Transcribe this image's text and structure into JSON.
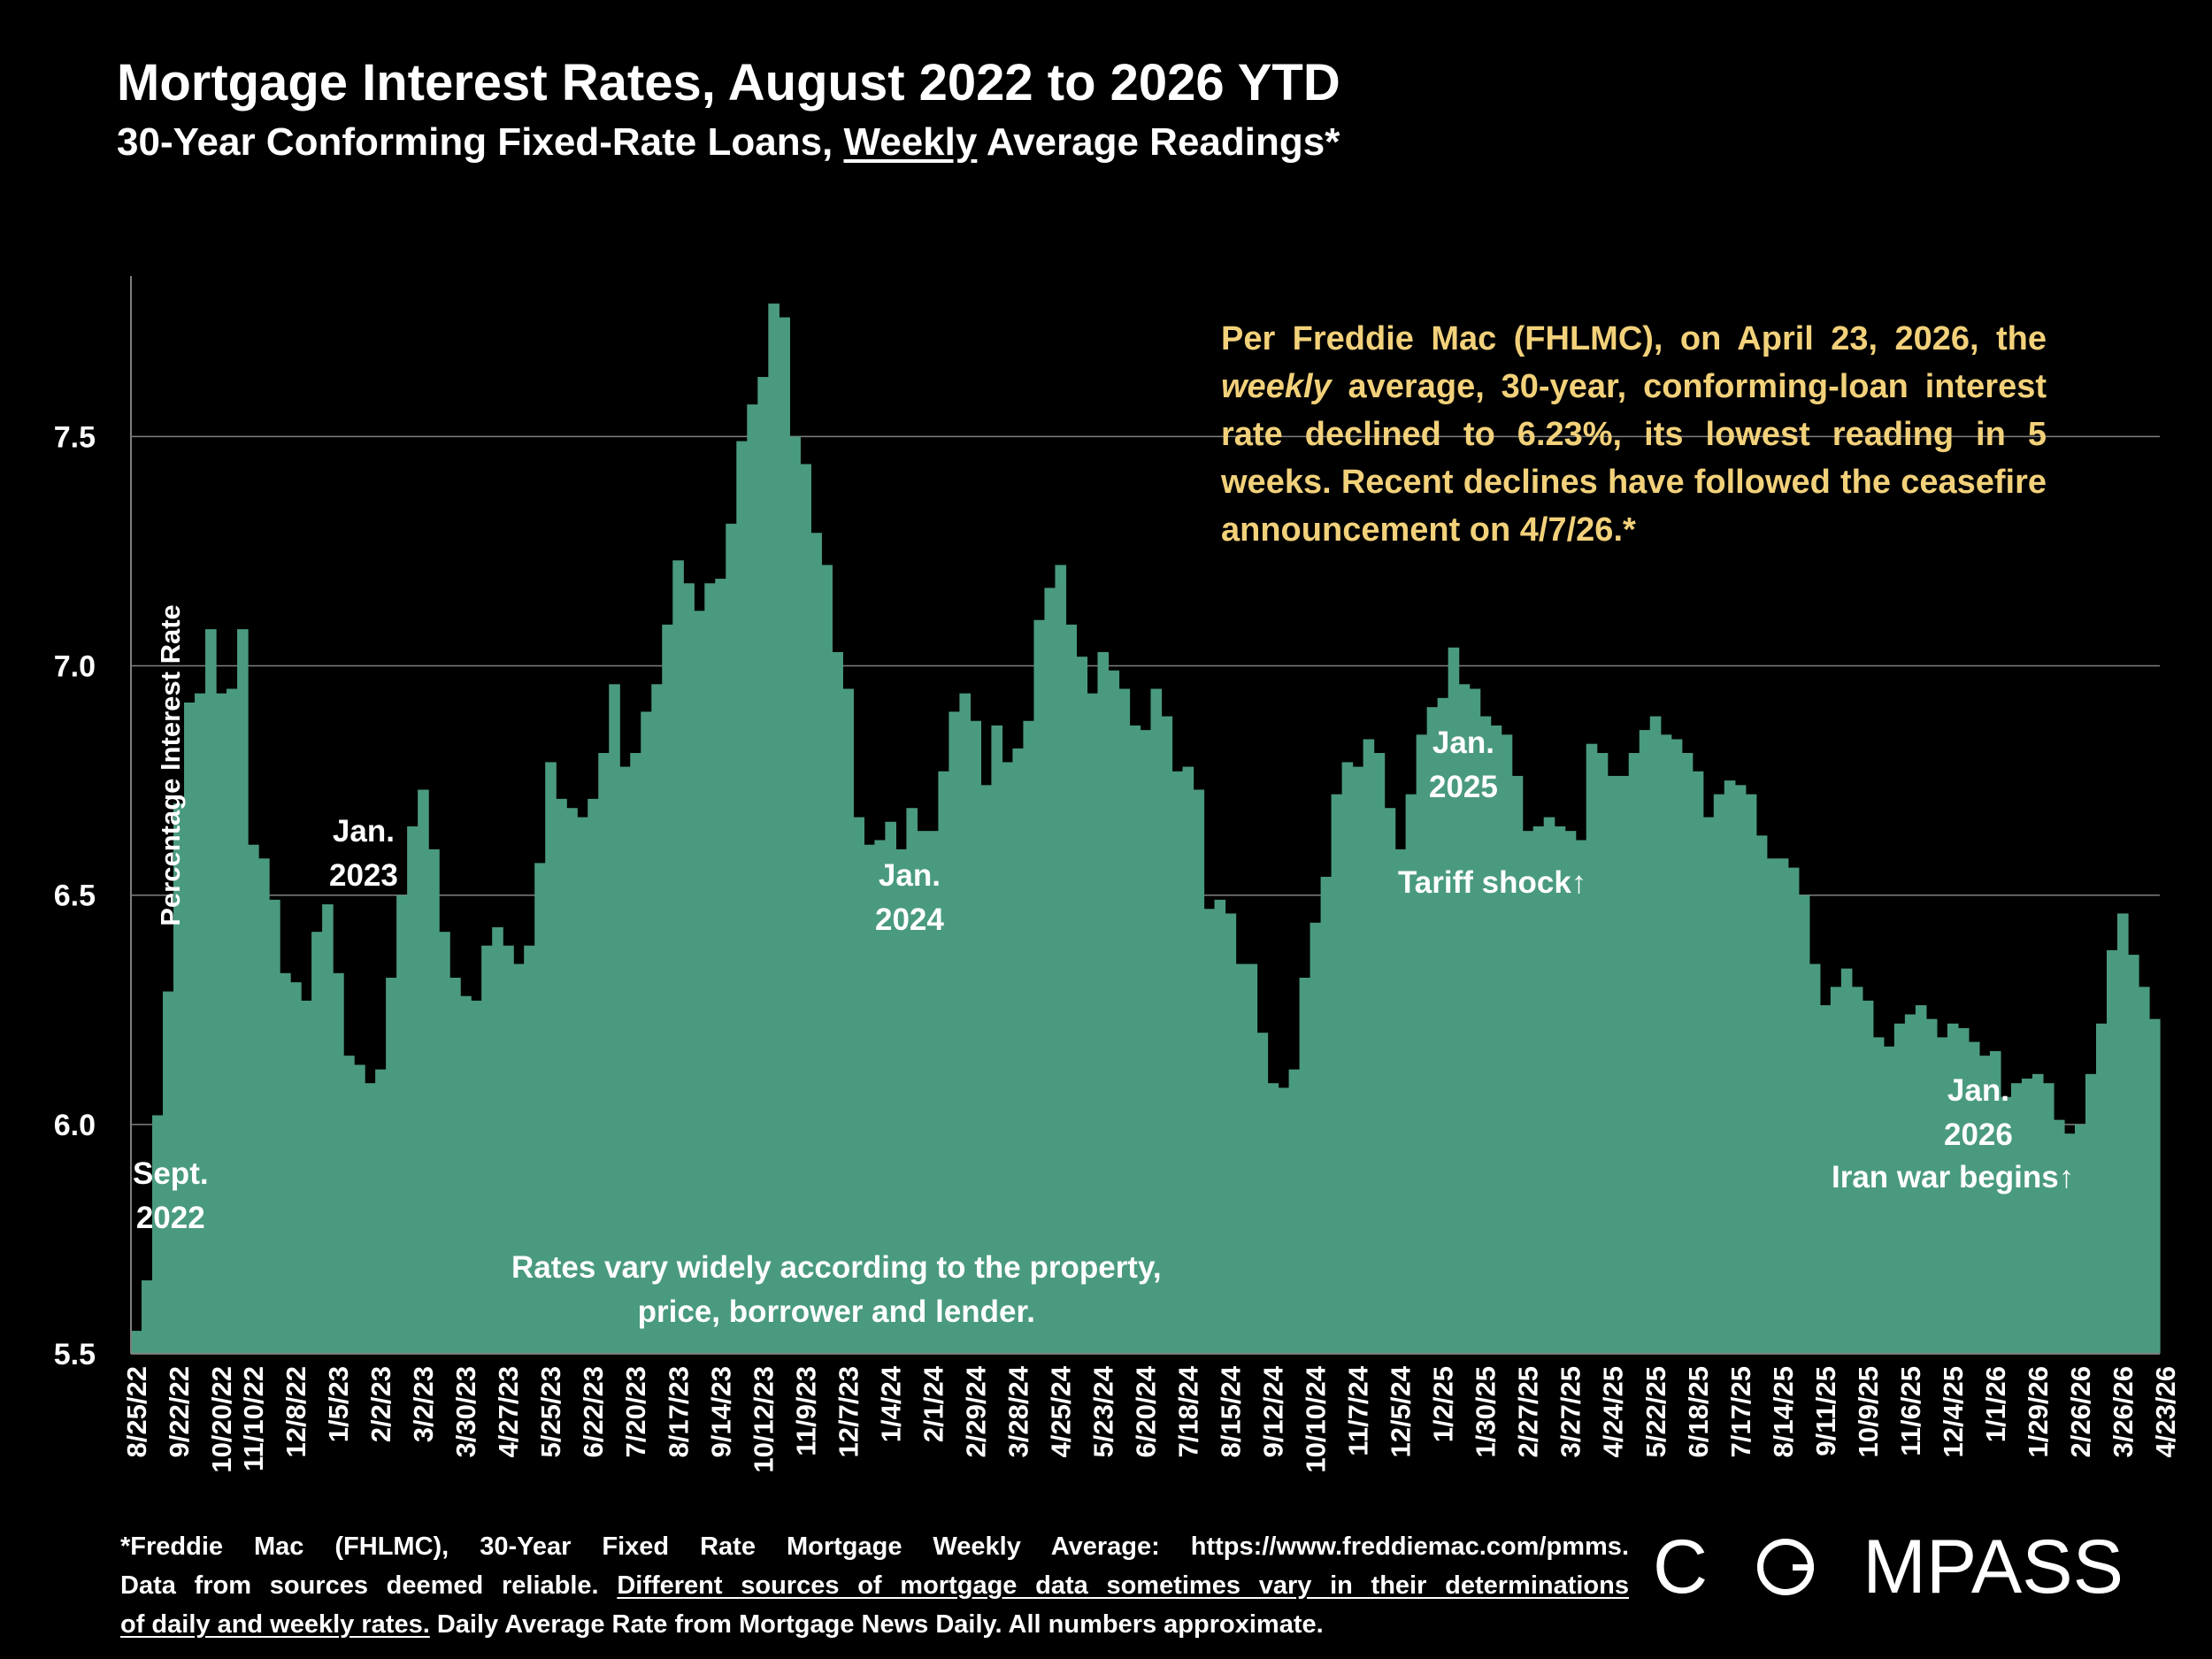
{
  "header": {
    "title": "Mortgage Interest Rates, August 2022 to 2026 YTD",
    "subtitle_pre": "30-Year Conforming Fixed-Rate Loans, ",
    "subtitle_underlined": "Weekly",
    "subtitle_post": " Average Readings*"
  },
  "note": {
    "pre": "Per Freddie Mac (FHLMC), on April 23, 2026, the ",
    "emph": "weekly",
    "post": " average, 30-year, conforming-loan interest rate declined to 6.23%, its lowest reading in 5 weeks. Recent declines have followed the ceasefire announcement on 4/7/26.*"
  },
  "annotations": {
    "sept2022_line1": "Sept.",
    "sept2022_line2": "2022",
    "jan2023_line1": "Jan.",
    "jan2023_line2": "2023",
    "jan2024_line1": "Jan.",
    "jan2024_line2": "2024",
    "jan2025_line1": "Jan.",
    "jan2025_line2": "2025",
    "tariff": "Tariff shock↑",
    "jan2026_line1": "Jan.",
    "jan2026_line2": "2026",
    "iran": "Iran war begins↑",
    "vary_line1": "Rates vary widely according to the property,",
    "vary_line2": "price, borrower and lender."
  },
  "footnote": {
    "line1": "*Freddie Mac (FHLMC), 30-Year Fixed Rate Mortgage Weekly Average:  https://www.freddiemac.com/pmms.",
    "line2_pre": "Data from sources deemed reliable. ",
    "line2_underlined": "Different sources of mortgage data sometimes vary in their determinations",
    "line3_underlined": "of daily and weekly rates.",
    "line3_post": " Daily Average Rate from Mortgage News Daily. All numbers approximate."
  },
  "logo": {
    "left": "C",
    "right": "MPASS"
  },
  "colors": {
    "background": "#000000",
    "fill": "#4a9a80",
    "note_text": "#f2d17a",
    "gridline": "#7f7f7f",
    "text": "#ffffff"
  },
  "chart_data": {
    "type": "area",
    "ylabel": "Percentage Interest  Rate",
    "xlabel": "",
    "ylim": [
      5.5,
      7.85
    ],
    "yticks": [
      5.5,
      6.0,
      6.5,
      7.0,
      7.5
    ],
    "ytick_labels": [
      "5.5",
      "6.0",
      "6.5",
      "7.0",
      "7.5"
    ],
    "grid": "horizontal",
    "start_date": "8/25/22",
    "end_date": "4/23/26",
    "x_tick_labels": [
      "8/25/22",
      "9/22/22",
      "10/20/22",
      "11/10/22",
      "12/8/22",
      "1/5/23",
      "2/2/23",
      "3/2/23",
      "3/30/23",
      "4/27/23",
      "5/25/23",
      "6/22/23",
      "7/20/23",
      "8/17/23",
      "9/14/23",
      "10/12/23",
      "11/9/23",
      "12/7/23",
      "1/4/24",
      "2/1/24",
      "2/29/24",
      "3/28/24",
      "4/25/24",
      "5/23/24",
      "6/20/24",
      "7/18/24",
      "8/15/24",
      "9/12/24",
      "10/10/24",
      "11/7/24",
      "12/5/24",
      "1/2/25",
      "1/30/25",
      "2/27/25",
      "3/27/25",
      "4/24/25",
      "5/22/25",
      "6/18/25",
      "7/17/25",
      "8/14/25",
      "9/11/25",
      "10/9/25",
      "11/6/25",
      "12/4/25",
      "1/1/26",
      "1/29/26",
      "2/26/26",
      "3/26/26",
      "4/23/26"
    ],
    "x_tick_weeks": [
      0,
      4,
      8,
      11,
      15,
      19,
      23,
      27,
      31,
      35,
      39,
      43,
      47,
      51,
      55,
      59,
      63,
      67,
      71,
      75,
      79,
      83,
      87,
      91,
      95,
      99,
      103,
      107,
      111,
      115,
      119,
      123,
      127,
      131,
      135,
      139,
      143,
      147,
      151,
      155,
      159,
      163,
      167,
      171,
      175,
      179,
      183,
      187,
      191
    ],
    "series": [
      {
        "values": [
          5.55,
          5.66,
          6.02,
          6.29,
          6.7,
          6.92,
          6.94,
          7.08,
          6.94,
          6.95,
          7.08,
          6.61,
          6.58,
          6.49,
          6.33,
          6.31,
          6.27,
          6.42,
          6.48,
          6.33,
          6.15,
          6.13,
          6.09,
          6.12,
          6.32,
          6.5,
          6.65,
          6.73,
          6.6,
          6.42,
          6.32,
          6.28,
          6.27,
          6.39,
          6.43,
          6.39,
          6.35,
          6.39,
          6.57,
          6.79,
          6.71,
          6.69,
          6.67,
          6.71,
          6.81,
          6.96,
          6.78,
          6.81,
          6.9,
          6.96,
          7.09,
          7.23,
          7.18,
          7.12,
          7.18,
          7.19,
          7.31,
          7.49,
          7.57,
          7.63,
          7.79,
          7.76,
          7.5,
          7.44,
          7.29,
          7.22,
          7.03,
          6.95,
          6.67,
          6.61,
          6.62,
          6.66,
          6.6,
          6.69,
          6.64,
          6.64,
          6.77,
          6.9,
          6.94,
          6.88,
          6.74,
          6.87,
          6.79,
          6.82,
          6.88,
          7.1,
          7.17,
          7.22,
          7.09,
          7.02,
          6.94,
          7.03,
          6.99,
          6.95,
          6.87,
          6.86,
          6.95,
          6.89,
          6.77,
          6.78,
          6.73,
          6.47,
          6.49,
          6.46,
          6.35,
          6.35,
          6.2,
          6.09,
          6.08,
          6.12,
          6.32,
          6.44,
          6.54,
          6.72,
          6.79,
          6.78,
          6.84,
          6.81,
          6.69,
          6.6,
          6.72,
          6.85,
          6.91,
          6.93,
          7.04,
          6.96,
          6.95,
          6.89,
          6.87,
          6.85,
          6.76,
          6.64,
          6.65,
          6.67,
          6.65,
          6.64,
          6.62,
          6.83,
          6.81,
          6.76,
          6.76,
          6.81,
          6.86,
          6.89,
          6.85,
          6.84,
          6.81,
          6.77,
          6.67,
          6.72,
          6.75,
          6.74,
          6.72,
          6.63,
          6.58,
          6.58,
          6.56,
          6.5,
          6.35,
          6.26,
          6.3,
          6.34,
          6.3,
          6.27,
          6.19,
          6.17,
          6.22,
          6.24,
          6.26,
          6.23,
          6.19,
          6.22,
          6.21,
          6.18,
          6.15,
          6.16,
          6.06,
          6.09,
          6.1,
          6.11,
          6.09,
          6.01,
          5.98,
          6.0,
          6.11,
          6.22,
          6.38,
          6.46,
          6.37,
          6.3,
          6.23
        ]
      }
    ]
  }
}
